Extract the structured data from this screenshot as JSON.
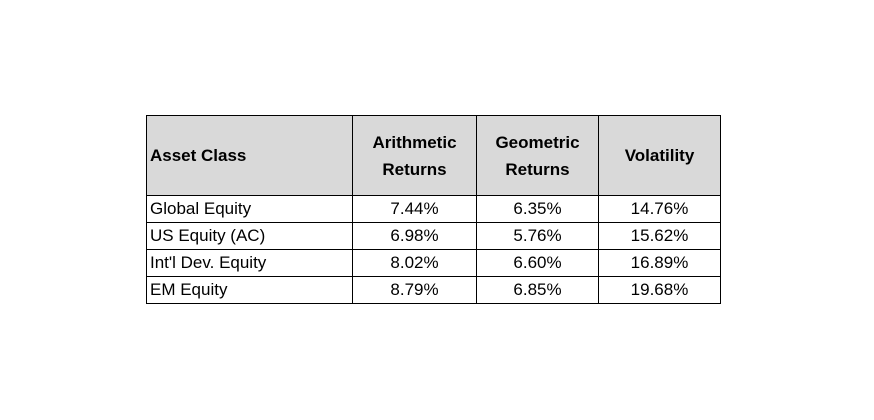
{
  "table": {
    "headers": [
      {
        "lines": [
          "Asset Class"
        ]
      },
      {
        "lines": [
          "Arithmetic",
          "Returns"
        ]
      },
      {
        "lines": [
          "Geometric",
          "Returns"
        ]
      },
      {
        "lines": [
          "Volatility"
        ]
      }
    ],
    "rows": [
      {
        "asset": "Global Equity",
        "arithmetic": "7.44%",
        "geometric": "6.35%",
        "volatility": "14.76%"
      },
      {
        "asset": "US Equity (AC)",
        "arithmetic": "6.98%",
        "geometric": "5.76%",
        "volatility": "15.62%"
      },
      {
        "asset": "Int'l Dev. Equity",
        "arithmetic": "8.02%",
        "geometric": "6.60%",
        "volatility": "16.89%"
      },
      {
        "asset": "EM Equity",
        "arithmetic": "8.79%",
        "geometric": "6.85%",
        "volatility": "19.68%"
      }
    ]
  },
  "colors": {
    "header_bg": "#d9d9d9",
    "border": "#000000",
    "text": "#000000"
  }
}
